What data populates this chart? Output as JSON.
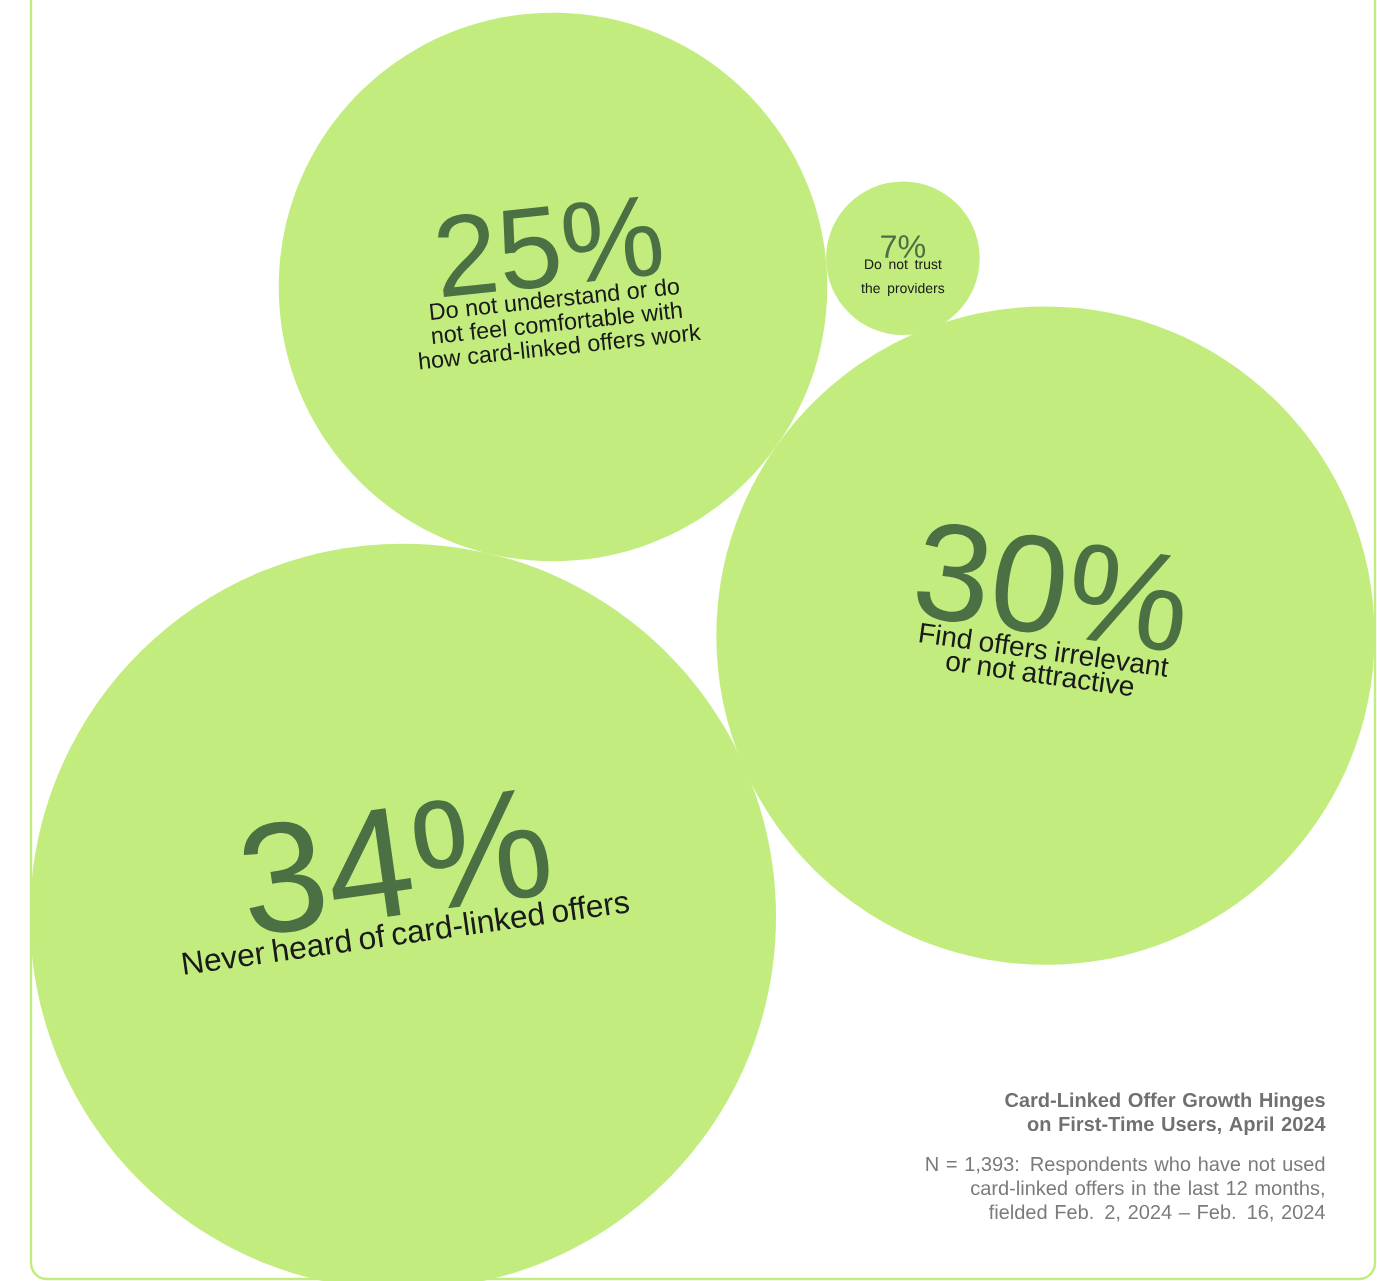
{
  "chart_data": {
    "type": "other",
    "categories": [
      "Do not understand or do not feel comfortable with how card-linked offers work",
      "Do not trust the providers",
      "Find offers irrelevant or not attractive",
      "Never heard of card-linked offers"
    ],
    "values": [
      25,
      7,
      30,
      34
    ],
    "value_labels": [
      "25%",
      "7%",
      "30%",
      "34%"
    ],
    "color": "#c2ed7e",
    "title": "Card-Linked Offer Growth Hinges on First-Time Users, April 2024",
    "annotations": [
      "N = 1,393: Respondents who have not used card-linked offers in the last 12 months, fielded Feb. 2, 2024 – Feb. 16, 2024"
    ]
  }
}
